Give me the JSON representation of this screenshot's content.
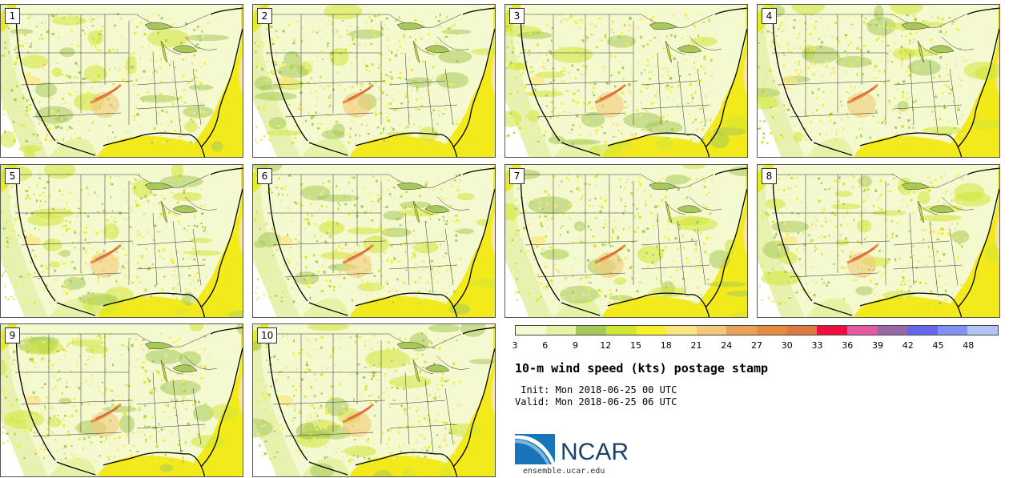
{
  "panels": [
    {
      "label": "1"
    },
    {
      "label": "2"
    },
    {
      "label": "3"
    },
    {
      "label": "4"
    },
    {
      "label": "5"
    },
    {
      "label": "6"
    },
    {
      "label": "7"
    },
    {
      "label": "8"
    },
    {
      "label": "9"
    },
    {
      "label": "10"
    }
  ],
  "colorbar": {
    "colors": [
      "#f4f9d4",
      "#e6f2a5",
      "#a8c95a",
      "#d2e535",
      "#f6ef2a",
      "#fbe680",
      "#f2c979",
      "#e9a057",
      "#e38c3e",
      "#dc7a42",
      "#ef0f3f",
      "#e35aa0",
      "#9868a7",
      "#6565ee",
      "#7f92f4",
      "#b3c5f7"
    ],
    "ticks": [
      "3",
      "6",
      "9",
      "12",
      "15",
      "18",
      "21",
      "24",
      "27",
      "30",
      "33",
      "36",
      "39",
      "42",
      "45",
      "48"
    ]
  },
  "title": "10-m wind speed (kts) postage stamp",
  "init": " Init: Mon 2018-06-25 00 UTC",
  "valid": "Valid: Mon 2018-06-25 06 UTC",
  "logo": {
    "text": "NCAR",
    "website": "ensemble.ucar.edu"
  }
}
